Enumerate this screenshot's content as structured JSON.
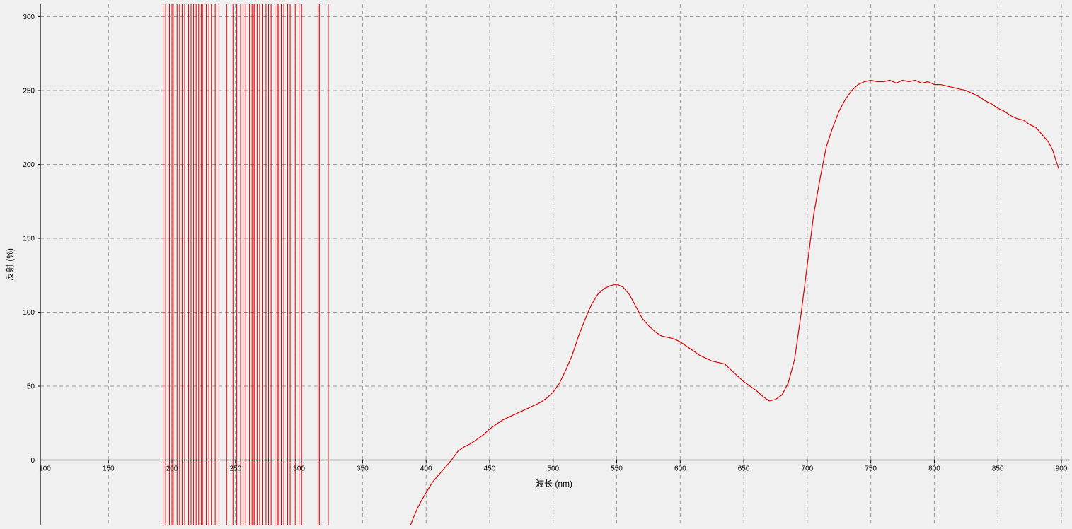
{
  "chart_data": {
    "type": "line",
    "title": "",
    "xlabel": "波长 (nm)",
    "ylabel": "反射 (%)",
    "xlim": [
      96,
      904
    ],
    "ylim": [
      -44,
      308
    ],
    "grid": true,
    "x_ticks": [
      100,
      150,
      200,
      250,
      300,
      350,
      400,
      450,
      500,
      550,
      600,
      650,
      700,
      750,
      800,
      850,
      900
    ],
    "y_ticks": [
      0,
      50,
      100,
      150,
      200,
      250,
      300
    ],
    "colors": {
      "background": "#f0f0f0",
      "series": "#e00000",
      "grid": "#9a9a9a",
      "axis": "#000000"
    },
    "series": [
      {
        "x": [
          387,
          390,
          393,
          396,
          400,
          405,
          410,
          415,
          420,
          425,
          430,
          435,
          440,
          445,
          450,
          455,
          460,
          470,
          480,
          490,
          495,
          500,
          505,
          510,
          515,
          520,
          525,
          530,
          535,
          540,
          545,
          550,
          555,
          560,
          565,
          570,
          575,
          580,
          585,
          590,
          595,
          600,
          605,
          610,
          615,
          620,
          625,
          630,
          635,
          640,
          645,
          650,
          655,
          660,
          665,
          670,
          675,
          680,
          685,
          690,
          695,
          700,
          705,
          710,
          715,
          720,
          725,
          730,
          735,
          740,
          745,
          750,
          755,
          760,
          765,
          770,
          775,
          780,
          785,
          790,
          795,
          800,
          805,
          810,
          815,
          820,
          825,
          830,
          835,
          840,
          845,
          850,
          855,
          860,
          865,
          870,
          875,
          880,
          885,
          890,
          893,
          896,
          898
        ],
        "y": [
          -46,
          -39,
          -33,
          -28,
          -22,
          -15,
          -10,
          -5,
          0,
          6,
          9,
          11,
          14,
          17,
          21,
          24,
          27,
          31,
          35,
          39,
          42,
          46,
          52,
          61,
          71,
          84,
          95,
          105,
          112,
          116,
          118,
          119,
          117,
          112,
          104,
          96,
          91,
          87,
          84,
          83,
          82,
          80,
          77,
          74,
          71,
          69,
          67,
          66,
          65,
          61,
          57,
          53,
          50,
          47,
          43,
          40,
          41,
          44,
          52,
          68,
          98,
          132,
          166,
          190,
          212,
          225,
          236,
          244,
          250,
          254,
          256,
          257,
          256,
          256,
          257,
          255,
          257,
          256,
          257,
          255,
          256,
          254,
          254,
          253,
          252,
          251,
          250,
          248,
          246,
          243,
          241,
          238,
          236,
          233,
          231,
          230,
          227,
          225,
          220,
          215,
          210,
          202,
          197
        ]
      }
    ],
    "vertical_lines_x": [
      193,
      195,
      198,
      200,
      201,
      204,
      206,
      208,
      210,
      213,
      215,
      217,
      219,
      221,
      223,
      224,
      227,
      229,
      231,
      234,
      237,
      243,
      248,
      251,
      254,
      256,
      258,
      261,
      263,
      264,
      265,
      267,
      269,
      271,
      274,
      276,
      278,
      281,
      283,
      284,
      286,
      288,
      291,
      293,
      297,
      300,
      302,
      315,
      316,
      323
    ]
  }
}
